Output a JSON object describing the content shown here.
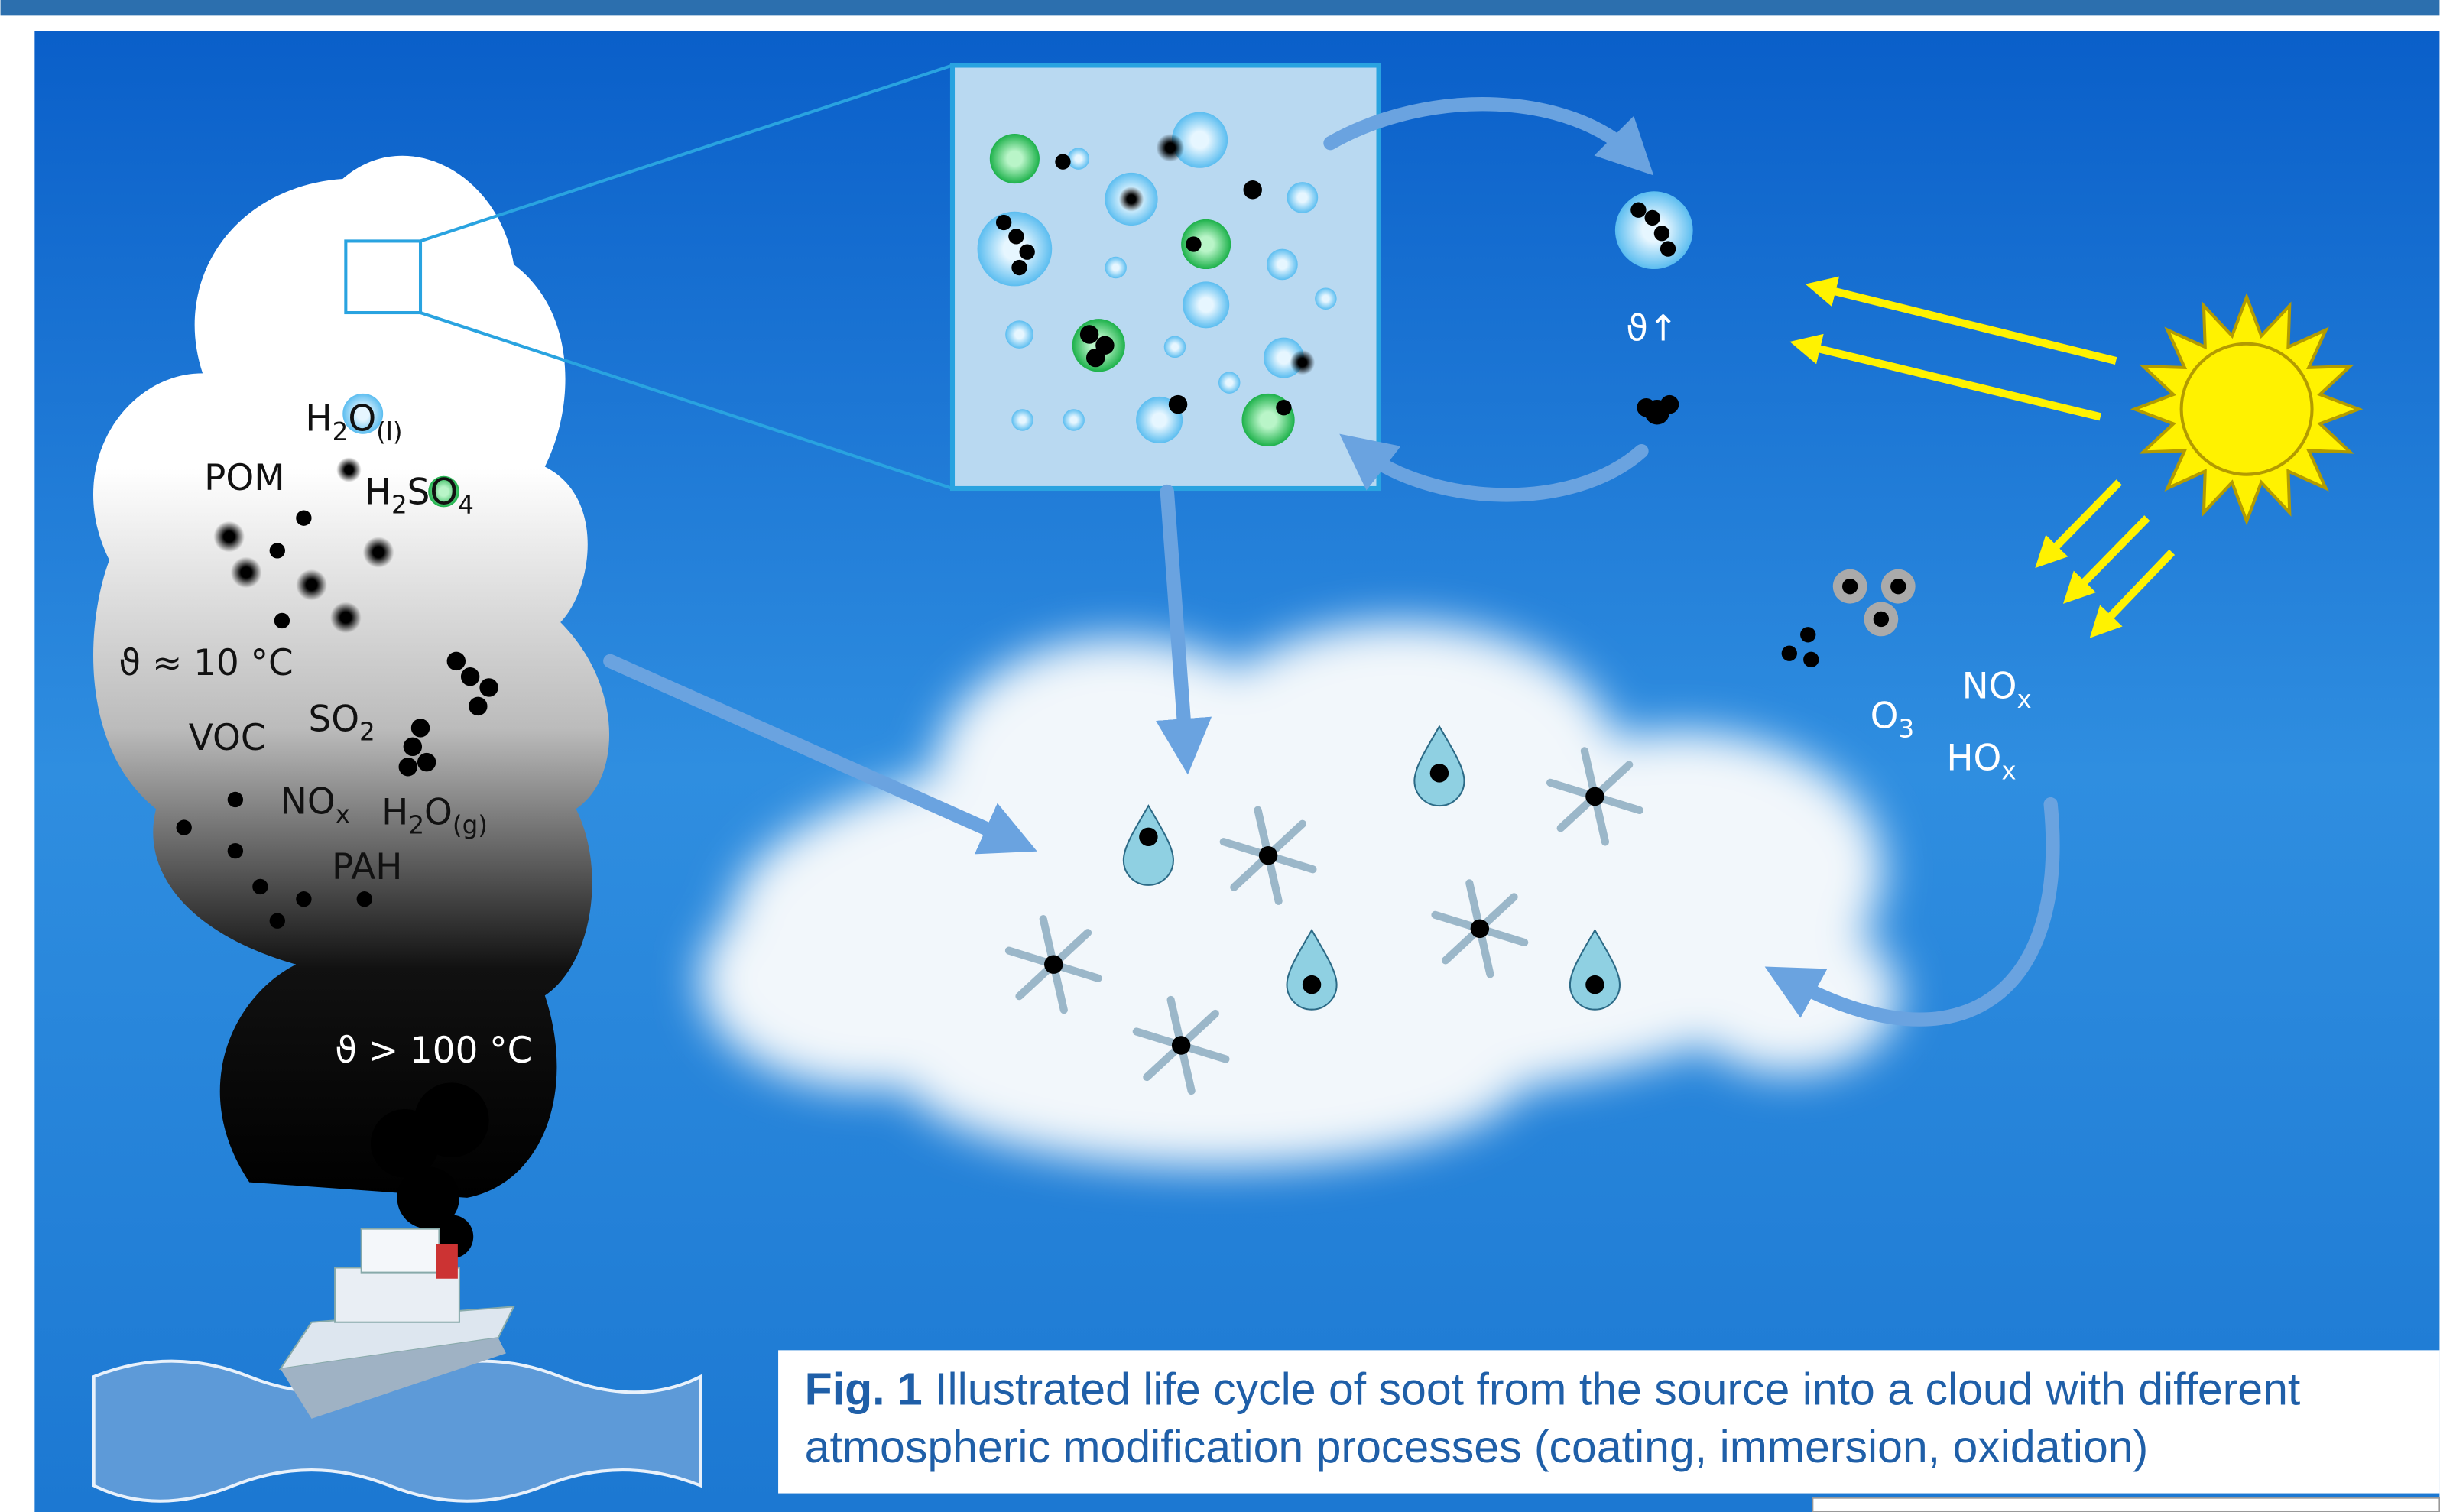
{
  "labels": {
    "h2o_liquid": [
      {
        "text": "H"
      },
      {
        "text": "2",
        "sub": true
      },
      {
        "text": "O"
      },
      {
        "text": "(l)",
        "sub": true
      }
    ],
    "pom": [
      {
        "text": "POM"
      }
    ],
    "h2so4": [
      {
        "text": "H"
      },
      {
        "text": "2",
        "sub": true
      },
      {
        "text": "SO"
      },
      {
        "text": "4",
        "sub": true
      }
    ],
    "temp_low": [
      {
        "text": "ϑ ≈ 10 °C"
      }
    ],
    "so2": [
      {
        "text": "SO"
      },
      {
        "text": "2",
        "sub": true
      }
    ],
    "voc": [
      {
        "text": "VOC"
      }
    ],
    "nox_plume": [
      {
        "text": "NO"
      },
      {
        "text": "x",
        "sub": true
      }
    ],
    "h2o_gas": [
      {
        "text": "H"
      },
      {
        "text": "2",
        "sub": true
      },
      {
        "text": "O"
      },
      {
        "text": "(g)",
        "sub": true
      }
    ],
    "pah": [
      {
        "text": "PAH"
      }
    ],
    "temp_high": [
      {
        "text": "ϑ > 100 °C"
      }
    ],
    "temp_rise": [
      {
        "text": "ϑ↑"
      }
    ],
    "nox_air": [
      {
        "text": "NO"
      },
      {
        "text": "x",
        "sub": true
      }
    ],
    "o3": [
      {
        "text": "O"
      },
      {
        "text": "3",
        "sub": true
      }
    ],
    "hox": [
      {
        "text": "HO"
      },
      {
        "text": "x",
        "sub": true
      }
    ]
  },
  "caption": {
    "label": "Fig. 1",
    "lines": [
      "Illustrated life cycle of soot from the source into a cloud with different",
      "atmospheric modification processes (coating, immersion, oxidation)"
    ]
  }
}
